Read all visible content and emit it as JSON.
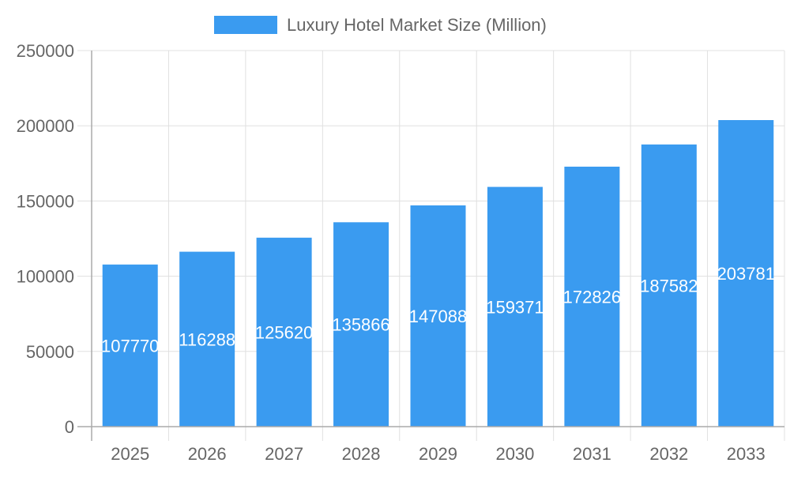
{
  "chart_data": {
    "type": "bar",
    "title": "",
    "xlabel": "",
    "ylabel": "",
    "categories": [
      "2025",
      "2026",
      "2027",
      "2028",
      "2029",
      "2030",
      "2031",
      "2032",
      "2033"
    ],
    "series": [
      {
        "name": "Luxury Hotel Market Size (Million)",
        "values": [
          107770,
          116288,
          125620,
          135866,
          147088,
          159371,
          172826,
          187582,
          203781
        ]
      }
    ],
    "ylim": [
      0,
      250000
    ],
    "yticks": [
      0,
      50000,
      100000,
      150000,
      200000,
      250000
    ],
    "grid": true,
    "legend_position": "top",
    "data_labels": true,
    "colors": {
      "bar": "#3a9bf0",
      "grid": "#e0e0e0",
      "axis": "#aaaaaa",
      "text": "#666666",
      "label": "#ffffff"
    }
  }
}
